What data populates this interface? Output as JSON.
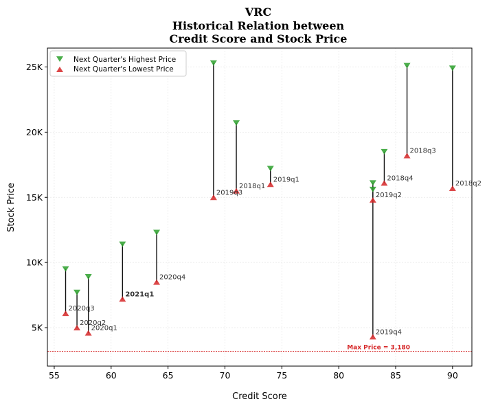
{
  "chart_data": {
    "type": "scatter",
    "title": [
      "VRC",
      "Historical Relation between",
      "Credit Score and Stock Price"
    ],
    "xlabel": "Credit Score",
    "ylabel": "Stock Price",
    "xlim": [
      54.4,
      91.7
    ],
    "ylim": [
      2050,
      26450
    ],
    "xticks": [
      {
        "value": 55,
        "label": "55"
      },
      {
        "value": 60,
        "label": "60"
      },
      {
        "value": 65,
        "label": "65"
      },
      {
        "value": 70,
        "label": "70"
      },
      {
        "value": 75,
        "label": "75"
      },
      {
        "value": 80,
        "label": "80"
      },
      {
        "value": 85,
        "label": "85"
      },
      {
        "value": 90,
        "label": "90"
      }
    ],
    "yticks": [
      {
        "value": 5000,
        "label": "5K"
      },
      {
        "value": 10000,
        "label": "10K"
      },
      {
        "value": 15000,
        "label": "15K"
      },
      {
        "value": 20000,
        "label": "20K"
      },
      {
        "value": 25000,
        "label": "25K"
      }
    ],
    "grid": true,
    "legend_position": "top-left",
    "series": [
      {
        "name": "Next Quarter's Highest Price",
        "marker": "triangle-down",
        "color": "#2ca02c"
      },
      {
        "name": "Next Quarter's Lowest Price",
        "marker": "triangle-up",
        "color": "#d62728"
      }
    ],
    "points": [
      {
        "label": "2020q3",
        "x": 56,
        "high": 9500,
        "low": 6100,
        "highlight": false
      },
      {
        "label": "2020q2",
        "x": 57,
        "high": 7700,
        "low": 5000,
        "highlight": false
      },
      {
        "label": "2020q1",
        "x": 58,
        "high": 8900,
        "low": 4600,
        "highlight": false
      },
      {
        "label": "2021q1",
        "x": 61,
        "high": 11400,
        "low": 7200,
        "highlight": true
      },
      {
        "label": "2020q4",
        "x": 64,
        "high": 12300,
        "low": 8500,
        "highlight": false
      },
      {
        "label": "2019q3",
        "x": 69,
        "high": 25300,
        "low": 15000,
        "highlight": false
      },
      {
        "label": "2018q1",
        "x": 71,
        "high": 20700,
        "low": 15500,
        "highlight": false
      },
      {
        "label": "2019q1",
        "x": 74,
        "high": 17200,
        "low": 16000,
        "highlight": false
      },
      {
        "label": "2019q2",
        "x": 83,
        "high": 15600,
        "low": 14800,
        "highlight": false
      },
      {
        "label": "2019q4",
        "x": 83,
        "high": 16100,
        "low": 4300,
        "highlight": false
      },
      {
        "label": "2018q4",
        "x": 84,
        "high": 18500,
        "low": 16100,
        "highlight": false
      },
      {
        "label": "2018q3",
        "x": 86,
        "high": 25100,
        "low": 18200,
        "highlight": false
      },
      {
        "label": "2018q2",
        "x": 90,
        "high": 24900,
        "low": 15700,
        "highlight": false
      }
    ],
    "reference_line": {
      "value": 3180,
      "label": "Max Price = 3,180",
      "color": "#d62728"
    }
  }
}
